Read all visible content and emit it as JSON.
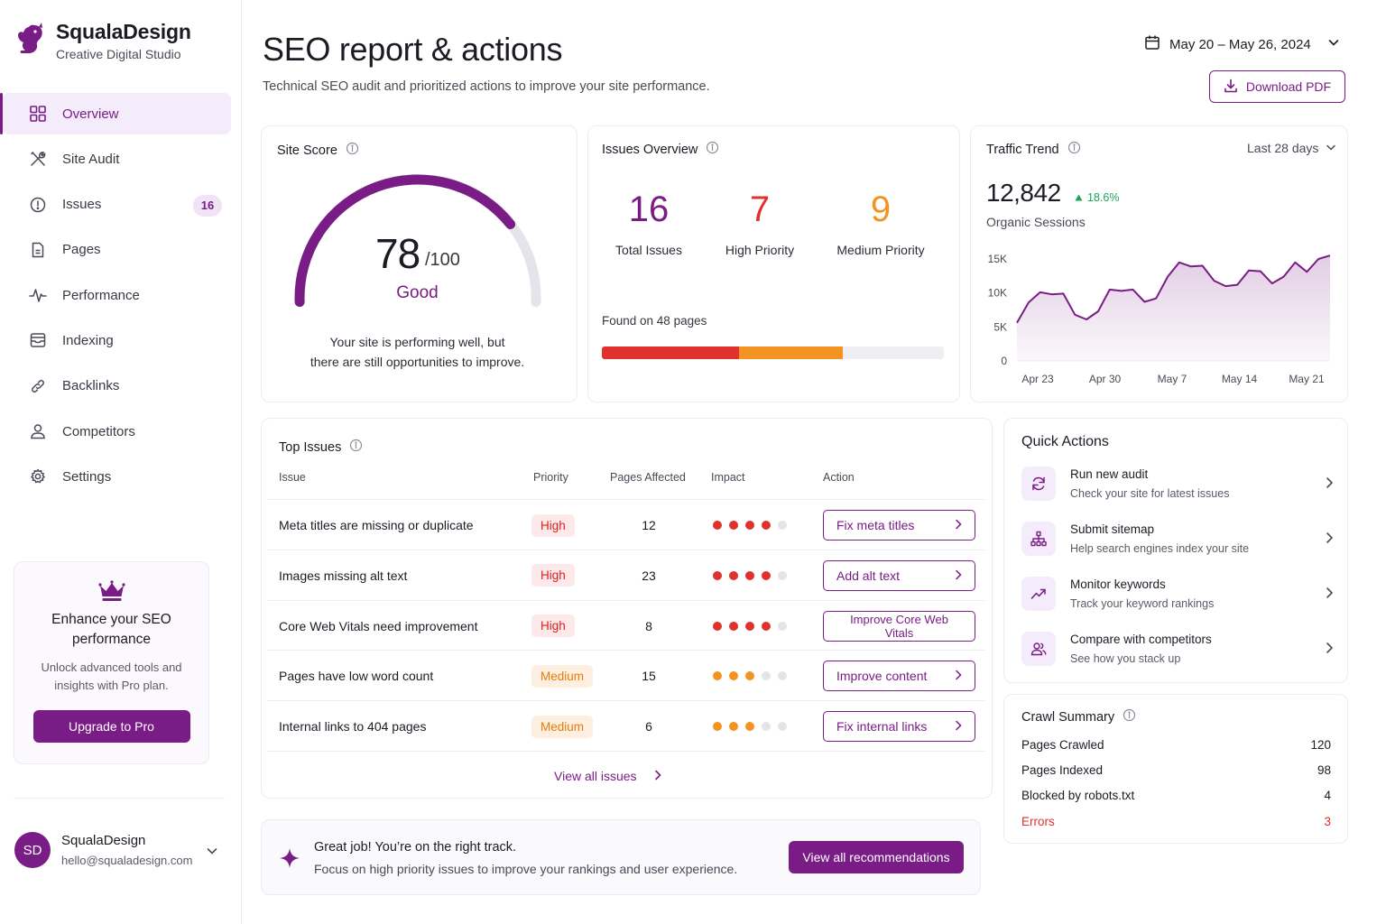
{
  "sidebar": {
    "brand_name": "SqualaDesign",
    "brand_sub": "Creative Digital Studio",
    "items": [
      {
        "label": "Overview",
        "icon": "grid-icon"
      },
      {
        "label": "Site Audit",
        "icon": "tools-icon"
      },
      {
        "label": "Issues",
        "icon": "alert-circle-icon",
        "badge": "16"
      },
      {
        "label": "Pages",
        "icon": "file-icon"
      },
      {
        "label": "Performance",
        "icon": "pulse-icon"
      },
      {
        "label": "Indexing",
        "icon": "inbox-icon"
      },
      {
        "label": "Backlinks",
        "icon": "link-icon"
      },
      {
        "label": "Competitors",
        "icon": "user-icon"
      },
      {
        "label": "Settings",
        "icon": "gear-icon"
      }
    ],
    "promo": {
      "title_line1": "Enhance your SEO",
      "title_line2": "performance",
      "text_line1": "Unlock advanced tools and",
      "text_line2": "insights with Pro plan.",
      "button": "Upgrade to Pro"
    },
    "user": {
      "initials": "SD",
      "name": "SqualaDesign",
      "email": "hello@squaladesign.com"
    }
  },
  "header": {
    "title": "SEO report & actions",
    "subtitle": "Technical SEO audit and prioritized actions to improve your site performance.",
    "date_range": "May 20 – May 26, 2024",
    "download_label": "Download PDF"
  },
  "site_score": {
    "title": "Site Score",
    "score": "78",
    "max": "/100",
    "score_value": 78,
    "label": "Good",
    "desc_line1": "Your site is performing well, but",
    "desc_line2": "there are still opportunities to improve."
  },
  "issues_overview": {
    "title": "Issues Overview",
    "stats": [
      {
        "value": "16",
        "label": "Total Issues",
        "color": "#7a1c86"
      },
      {
        "value": "7",
        "label": "High Priority",
        "color": "#e0312d"
      },
      {
        "value": "9",
        "label": "Medium Priority",
        "color": "#f39322"
      }
    ],
    "found": "Found on 48 pages",
    "bar": [
      {
        "fraction": 0.4,
        "color": "#e0312d"
      },
      {
        "fraction": 0.305,
        "color": "#f39322"
      }
    ]
  },
  "traffic": {
    "title": "Traffic Trend",
    "range": "Last 28 days",
    "value": "12,842",
    "delta": "18.6%",
    "label": "Organic Sessions"
  },
  "chart_data": {
    "type": "area",
    "title": "Traffic Trend",
    "y_ticks": [
      "15K",
      "10K",
      "5K",
      "0"
    ],
    "ylim": [
      0,
      15000
    ],
    "x_ticks": [
      "Apr 23",
      "Apr 30",
      "May 7",
      "May 14",
      "May 21"
    ],
    "series": [
      {
        "values": [
          5600,
          8600,
          10100,
          9800,
          9900,
          6800,
          6100,
          7300,
          10500,
          10300,
          10500,
          8700,
          9200,
          12400,
          14500,
          13900,
          14000,
          11800,
          11000,
          11200,
          13300,
          13200,
          11400,
          12400,
          14500,
          13100,
          15000,
          15500
        ]
      }
    ]
  },
  "top_issues": {
    "title": "Top Issues",
    "columns": [
      "Issue",
      "Priority",
      "Pages Affected",
      "Impact",
      "Action"
    ],
    "rows": [
      {
        "issue": "Meta titles are missing or duplicate",
        "priority": "High",
        "pages": "12",
        "impact": 4,
        "action": "Fix meta titles"
      },
      {
        "issue": "Images missing alt text",
        "priority": "High",
        "pages": "23",
        "impact": 4,
        "action": "Add alt text"
      },
      {
        "issue": "Core Web Vitals need improvement",
        "priority": "High",
        "pages": "8",
        "impact": 4,
        "action": "Improve Core Web Vitals"
      },
      {
        "issue": "Pages have low word count",
        "priority": "Medium",
        "pages": "15",
        "impact": 3,
        "action": "Improve content"
      },
      {
        "issue": "Internal links to 404 pages",
        "priority": "Medium",
        "pages": "6",
        "impact": 3,
        "action": "Fix internal links"
      }
    ],
    "view_all": "View all issues"
  },
  "quick_actions": {
    "title": "Quick Actions",
    "items": [
      {
        "title": "Run new audit",
        "sub": "Check your site for latest issues",
        "icon": "refresh-icon"
      },
      {
        "title": "Submit sitemap",
        "sub": "Help search engines index your site",
        "icon": "sitemap-icon"
      },
      {
        "title": "Monitor keywords",
        "sub": "Track your keyword rankings",
        "icon": "trend-up-icon"
      },
      {
        "title": "Compare with competitors",
        "sub": "See how you stack up",
        "icon": "users-icon"
      }
    ]
  },
  "crawl": {
    "title": "Crawl Summary",
    "rows": [
      {
        "label": "Pages Crawled",
        "value": "120"
      },
      {
        "label": "Pages Indexed",
        "value": "98"
      },
      {
        "label": "Blocked by robots.txt",
        "value": "4"
      },
      {
        "label": "Errors",
        "value": "3"
      }
    ]
  },
  "banner": {
    "title": "Great job! You’re on the right track.",
    "sub": "Focus on high priority issues to improve your rankings and user experience.",
    "button": "View all recommendations"
  },
  "colors": {
    "accent": "#7a1c86",
    "high": "#e0312d",
    "medium": "#f39322",
    "positive": "#1aa35a"
  }
}
